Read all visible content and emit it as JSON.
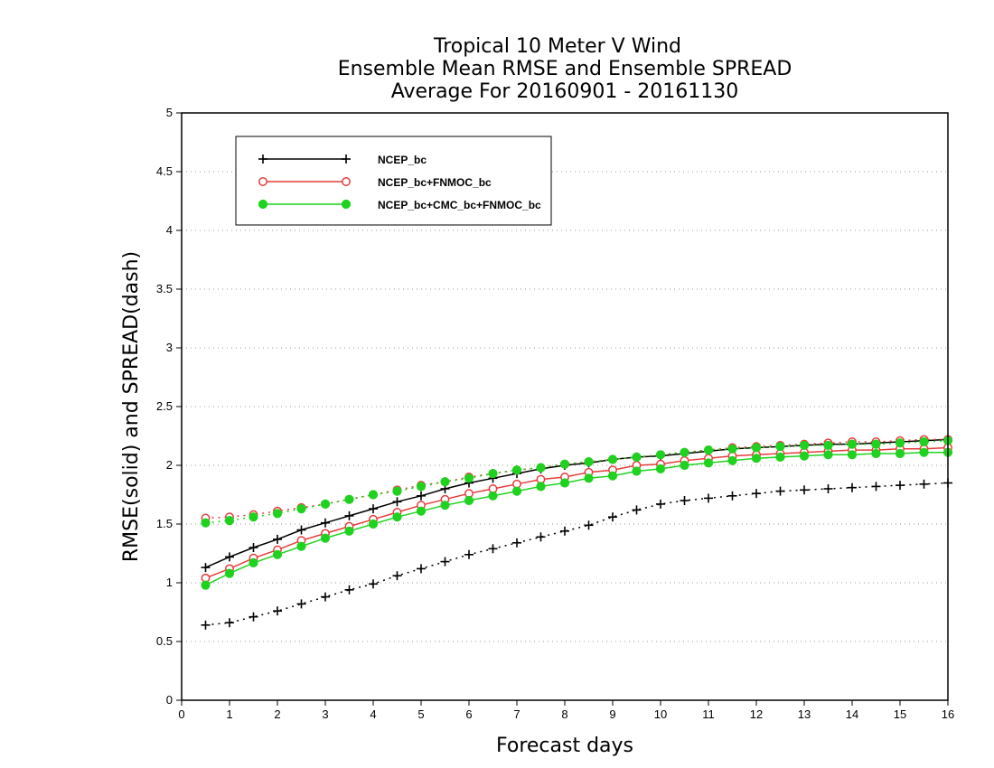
{
  "chart_data": {
    "type": "line",
    "title": [
      "Tropical 10 Meter V Wind",
      "Ensemble Mean RMSE and Ensemble SPREAD",
      "Average For 20160901 - 20161130"
    ],
    "xlabel": "Forecast days",
    "ylabel": "RMSE(solid) and SPREAD(dash)",
    "xlim": [
      0,
      16
    ],
    "ylim": [
      0,
      5
    ],
    "xticks": [
      "0",
      "1",
      "2",
      "3",
      "4",
      "5",
      "6",
      "7",
      "8",
      "9",
      "10",
      "11",
      "12",
      "13",
      "14",
      "15",
      "16"
    ],
    "yticks": [
      "0",
      "0.5",
      "1",
      "1.5",
      "2",
      "2.5",
      "3",
      "3.5",
      "4",
      "4.5",
      "5"
    ],
    "x": [
      0.5,
      1,
      1.5,
      2,
      2.5,
      3,
      3.5,
      4,
      4.5,
      5,
      5.5,
      6,
      6.5,
      7,
      7.5,
      8,
      8.5,
      9,
      9.5,
      10,
      10.5,
      11,
      11.5,
      12,
      12.5,
      13,
      13.5,
      14,
      14.5,
      15,
      15.5,
      16
    ],
    "grid": true,
    "legend_position": "top-left",
    "series": [
      {
        "name": "NCEP_bc",
        "color": "#000000",
        "marker": "plus",
        "rmse": [
          1.13,
          1.22,
          1.3,
          1.37,
          1.45,
          1.51,
          1.57,
          1.63,
          1.69,
          1.74,
          1.8,
          1.85,
          1.89,
          1.93,
          1.97,
          2.0,
          2.02,
          2.05,
          2.07,
          2.08,
          2.1,
          2.12,
          2.14,
          2.15,
          2.16,
          2.17,
          2.18,
          2.18,
          2.19,
          2.2,
          2.21,
          2.22
        ],
        "spread": [
          0.64,
          0.66,
          0.71,
          0.76,
          0.82,
          0.88,
          0.94,
          0.99,
          1.06,
          1.12,
          1.18,
          1.24,
          1.29,
          1.34,
          1.39,
          1.44,
          1.49,
          1.56,
          1.62,
          1.67,
          1.7,
          1.72,
          1.74,
          1.76,
          1.78,
          1.79,
          1.8,
          1.81,
          1.82,
          1.83,
          1.84,
          1.85
        ]
      },
      {
        "name": "NCEP_bc+FNMOC_bc",
        "color": "#e83c3c",
        "marker": "open-circle",
        "rmse": [
          1.04,
          1.12,
          1.21,
          1.28,
          1.36,
          1.42,
          1.48,
          1.54,
          1.6,
          1.66,
          1.71,
          1.76,
          1.8,
          1.84,
          1.88,
          1.9,
          1.94,
          1.96,
          2.0,
          2.01,
          2.04,
          2.06,
          2.08,
          2.09,
          2.1,
          2.11,
          2.12,
          2.13,
          2.13,
          2.14,
          2.14,
          2.15
        ],
        "spread": [
          1.55,
          1.56,
          1.58,
          1.61,
          1.64,
          1.67,
          1.71,
          1.75,
          1.79,
          1.83,
          1.86,
          1.9,
          1.93,
          1.96,
          1.98,
          2.01,
          2.03,
          2.05,
          2.07,
          2.09,
          2.11,
          2.13,
          2.15,
          2.16,
          2.17,
          2.18,
          2.19,
          2.2,
          2.2,
          2.21,
          2.22,
          2.22
        ]
      },
      {
        "name": "NCEP_bc+CMC_bc+FNMOC_bc",
        "color": "#1fd21f",
        "marker": "filled-circle",
        "rmse": [
          0.98,
          1.08,
          1.17,
          1.24,
          1.31,
          1.38,
          1.44,
          1.5,
          1.56,
          1.61,
          1.66,
          1.7,
          1.74,
          1.78,
          1.82,
          1.85,
          1.89,
          1.91,
          1.95,
          1.97,
          2.0,
          2.02,
          2.04,
          2.06,
          2.07,
          2.08,
          2.09,
          2.09,
          2.1,
          2.1,
          2.11,
          2.11
        ],
        "spread": [
          1.51,
          1.53,
          1.56,
          1.59,
          1.63,
          1.67,
          1.71,
          1.75,
          1.78,
          1.82,
          1.86,
          1.89,
          1.93,
          1.96,
          1.98,
          2.01,
          2.03,
          2.05,
          2.07,
          2.09,
          2.11,
          2.13,
          2.14,
          2.15,
          2.16,
          2.17,
          2.17,
          2.18,
          2.18,
          2.19,
          2.2,
          2.21
        ]
      }
    ]
  }
}
